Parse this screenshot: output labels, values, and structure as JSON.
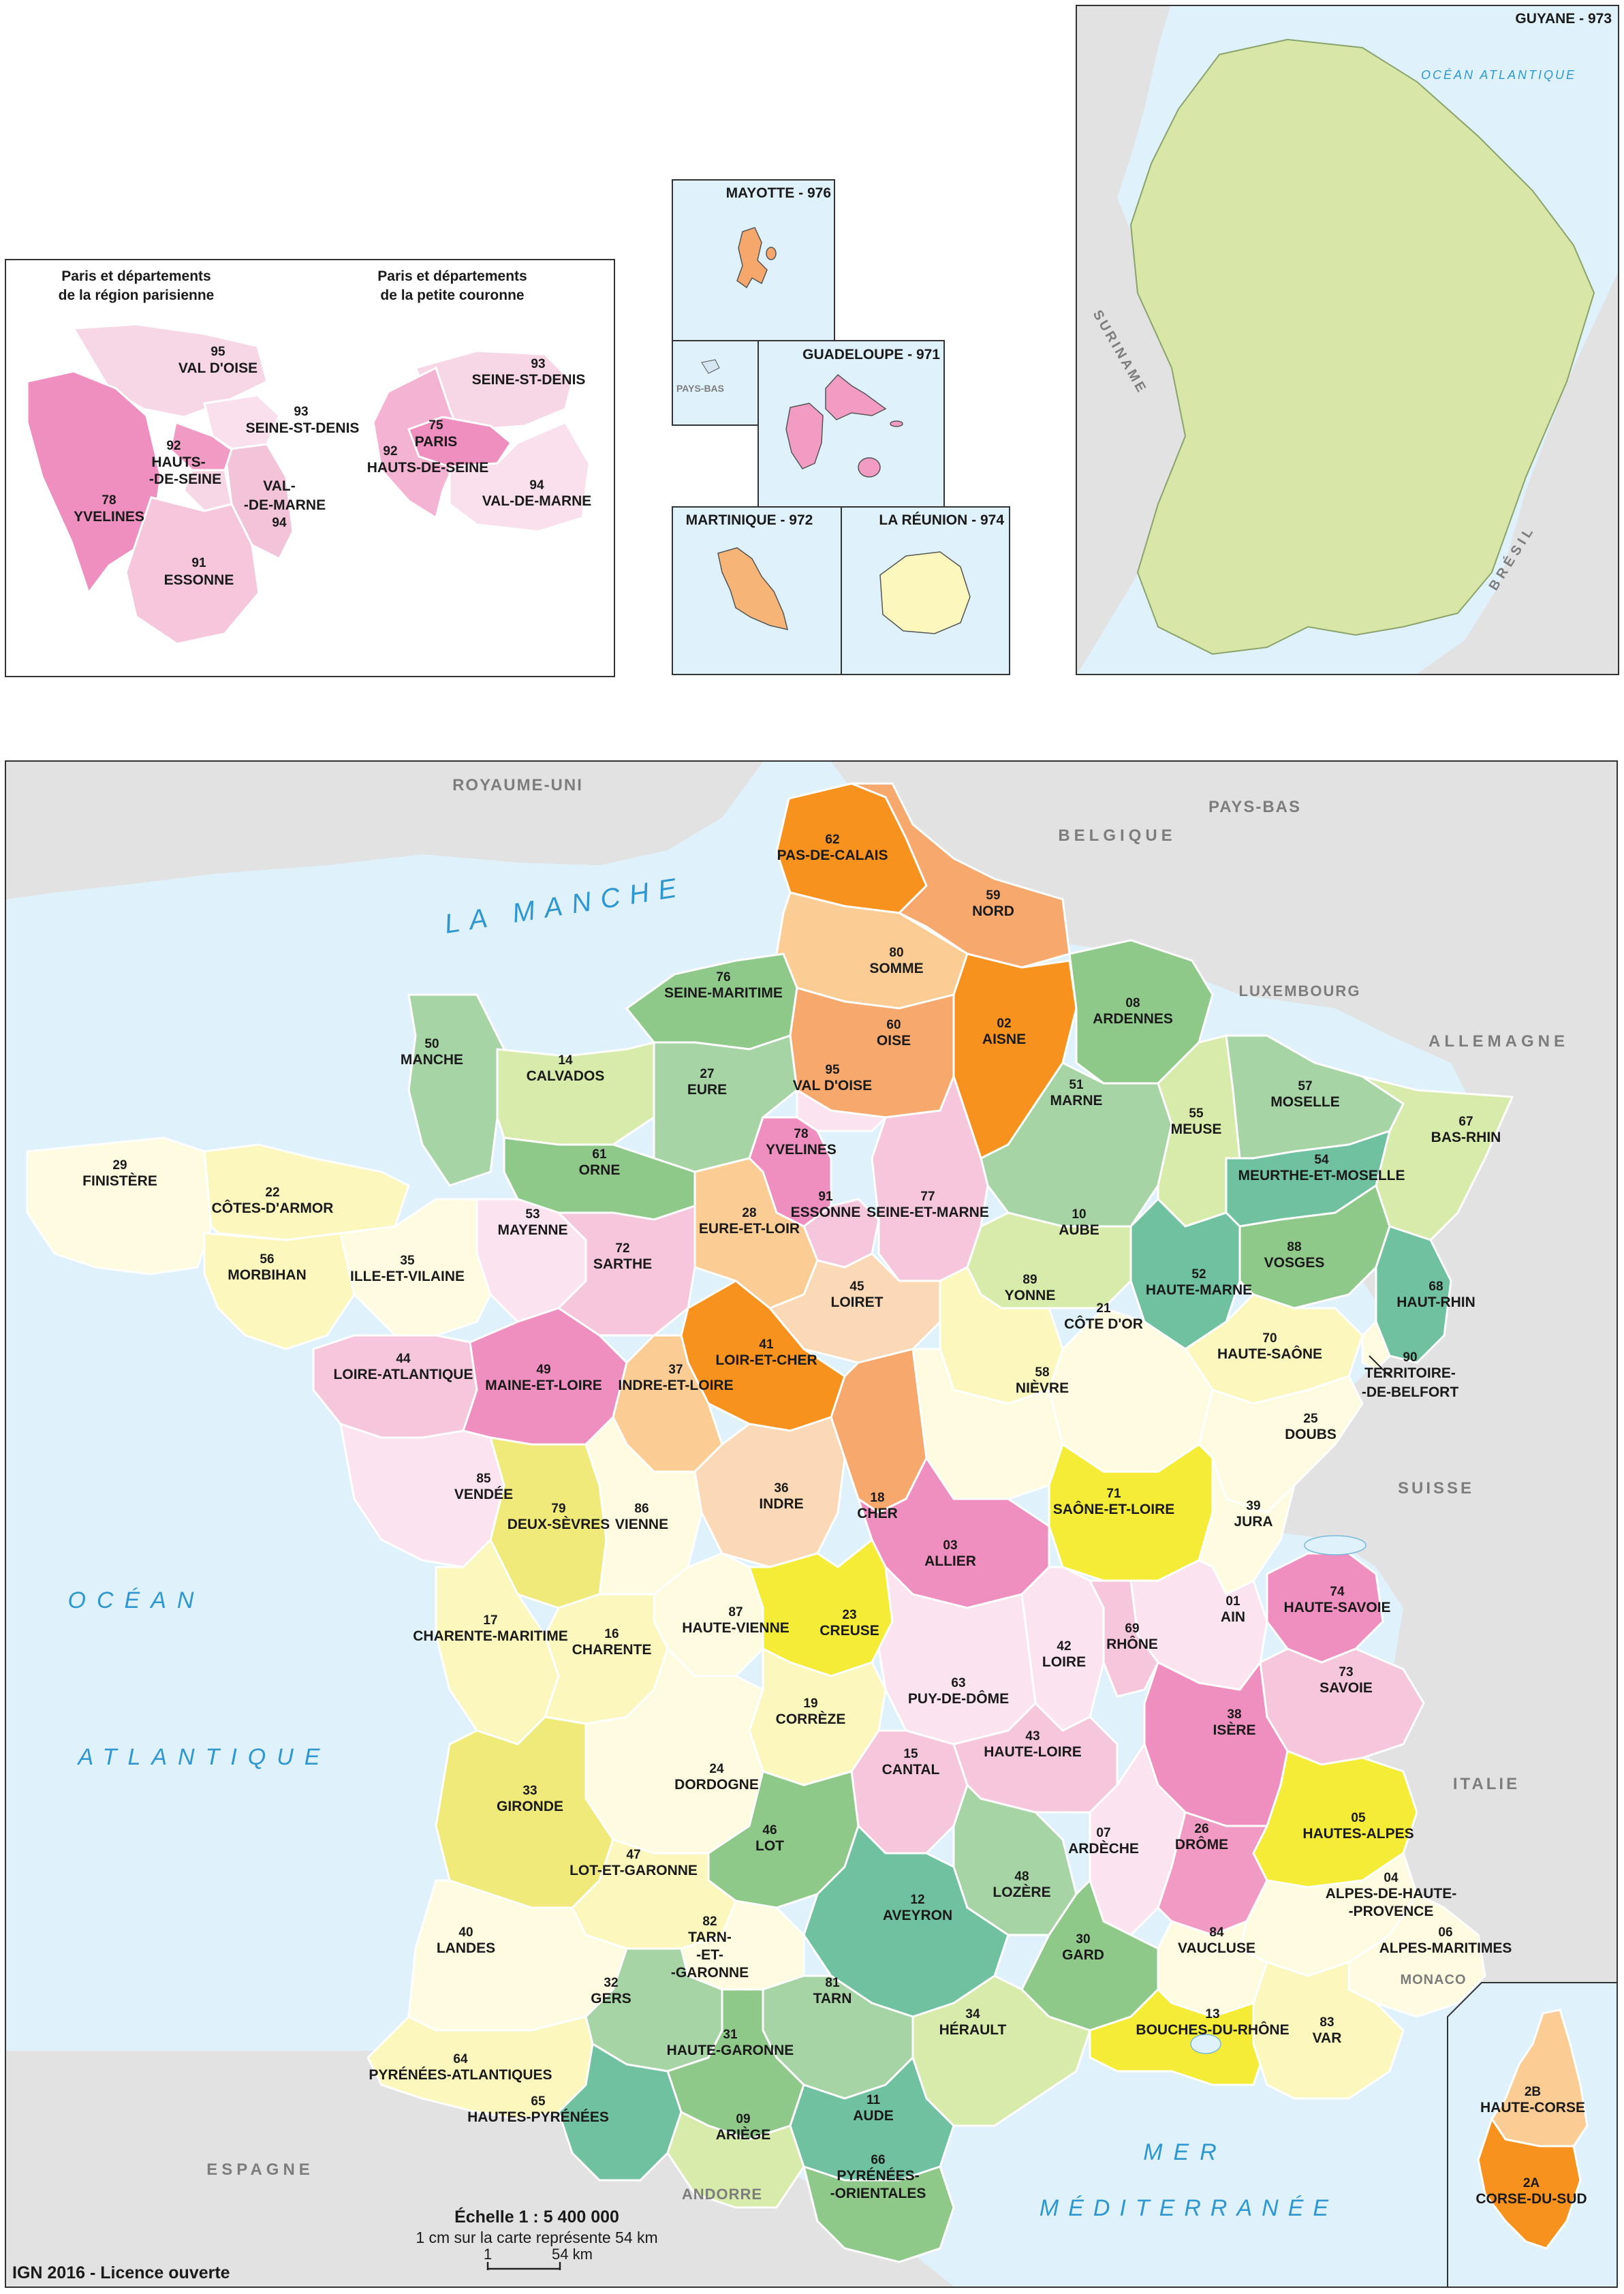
{
  "colors": {
    "sea": "#dff2fb",
    "land_gray": "#e2e2e2",
    "guyane": "#d8e6a8",
    "pink": "#f19bc4",
    "orange": "#f6a04a",
    "border": "#ffffff"
  },
  "insets": {
    "paris_region_title": [
      "Paris et départements",
      "de la région parisienne"
    ],
    "paris_petite_title": [
      "Paris et départements",
      "de la petite couronne"
    ],
    "mayotte": "MAYOTTE - 976",
    "guadeloupe": "GUADELOUPE - 971",
    "pays_bas": "PAYS-BAS",
    "martinique": "MARTINIQUE - 972",
    "reunion": "LA RÉUNION - 974",
    "guyane": "GUYANE - 973",
    "guyane_ocean": "OCÉAN ATLANTIQUE",
    "suriname": "SURINAME",
    "bresil": "BRÉSIL"
  },
  "paris_region_labels": [
    {
      "num": "95",
      "name": "VAL D'OISE"
    },
    {
      "num": "93",
      "name": "SEINE-ST-DENIS"
    },
    {
      "num": "92",
      "name": "HAUTS-"
    },
    {
      "num": "",
      "name": "-DE-SEINE"
    },
    {
      "num": "",
      "name": "VAL-"
    },
    {
      "num": "",
      "name": "-DE-MARNE"
    },
    {
      "num": "94",
      "name": ""
    },
    {
      "num": "78",
      "name": "YVELINES"
    },
    {
      "num": "91",
      "name": "ESSONNE"
    }
  ],
  "petite_labels": [
    {
      "num": "93",
      "name": "SEINE-ST-DENIS"
    },
    {
      "num": "75",
      "name": "PARIS"
    },
    {
      "num": "92",
      "name": "HAUTS-DE-SEINE"
    },
    {
      "num": "94",
      "name": "VAL-DE-MARNE"
    }
  ],
  "seas": {
    "manche": "LA MANCHE",
    "ocean": "OCÉAN",
    "atlantique": "ATLANTIQUE",
    "mer": "MER",
    "mediterranee": "MÉDITERRANÉE"
  },
  "countries": {
    "royaume_uni": "ROYAUME-UNI",
    "belgique": "BELGIQUE",
    "pays_bas": "PAYS-BAS",
    "luxembourg": "LUXEMBOURG",
    "allemagne": "ALLEMAGNE",
    "suisse": "SUISSE",
    "italie": "ITALIE",
    "monaco": "MONACO",
    "andorre": "ANDORRE",
    "espagne": "ESPAGNE"
  },
  "departments": [
    {
      "num": "62",
      "name": "PAS-DE-CALAIS"
    },
    {
      "num": "59",
      "name": "NORD"
    },
    {
      "num": "80",
      "name": "SOMME"
    },
    {
      "num": "02",
      "name": "AISNE"
    },
    {
      "num": "08",
      "name": "ARDENNES"
    },
    {
      "num": "76",
      "name": "SEINE-MARITIME"
    },
    {
      "num": "60",
      "name": "OISE"
    },
    {
      "num": "50",
      "name": "MANCHE"
    },
    {
      "num": "14",
      "name": "CALVADOS"
    },
    {
      "num": "27",
      "name": "EURE"
    },
    {
      "num": "95",
      "name": "VAL D'OISE"
    },
    {
      "num": "51",
      "name": "MARNE"
    },
    {
      "num": "55",
      "name": "MEUSE"
    },
    {
      "num": "57",
      "name": "MOSELLE"
    },
    {
      "num": "67",
      "name": "BAS-RHIN"
    },
    {
      "num": "29",
      "name": "FINISTÈRE"
    },
    {
      "num": "22",
      "name": "CÔTES-D'ARMOR"
    },
    {
      "num": "61",
      "name": "ORNE"
    },
    {
      "num": "78",
      "name": "YVELINES"
    },
    {
      "num": "91",
      "name": "ESSONNE"
    },
    {
      "num": "77",
      "name": "SEINE-ET-MARNE"
    },
    {
      "num": "54",
      "name": "MEURTHE-ET-MOSELLE"
    },
    {
      "num": "53",
      "name": "MAYENNE"
    },
    {
      "num": "28",
      "name": "EURE-ET-LOIR"
    },
    {
      "num": "10",
      "name": "AUBE"
    },
    {
      "num": "56",
      "name": "MORBIHAN"
    },
    {
      "num": "35",
      "name": "ILLE-ET-VILAINE"
    },
    {
      "num": "72",
      "name": "SARTHE"
    },
    {
      "num": "45",
      "name": "LOIRET"
    },
    {
      "num": "89",
      "name": "YONNE"
    },
    {
      "num": "52",
      "name": "HAUTE-MARNE"
    },
    {
      "num": "88",
      "name": "VOSGES"
    },
    {
      "num": "68",
      "name": "HAUT-RHIN"
    },
    {
      "num": "44",
      "name": "LOIRE-ATLANTIQUE"
    },
    {
      "num": "49",
      "name": "MAINE-ET-LOIRE"
    },
    {
      "num": "41",
      "name": "LOIR-ET-CHER"
    },
    {
      "num": "37",
      "name": "INDRE-ET-LOIRE"
    },
    {
      "num": "21",
      "name": "CÔTE D'OR"
    },
    {
      "num": "70",
      "name": "HAUTE-SAÔNE"
    },
    {
      "num": "90",
      "name": "TERRITOIRE-"
    },
    {
      "num": "",
      "name": "-DE-BELFORT"
    },
    {
      "num": "58",
      "name": "NIÈVRE"
    },
    {
      "num": "25",
      "name": "DOUBS"
    },
    {
      "num": "85",
      "name": "VENDÉE"
    },
    {
      "num": "79",
      "name": "DEUX-SÈVRES"
    },
    {
      "num": "86",
      "name": "VIENNE"
    },
    {
      "num": "36",
      "name": "INDRE"
    },
    {
      "num": "18",
      "name": "CHER"
    },
    {
      "num": "71",
      "name": "SAÔNE-ET-LOIRE"
    },
    {
      "num": "39",
      "name": "JURA"
    },
    {
      "num": "03",
      "name": "ALLIER"
    },
    {
      "num": "17",
      "name": "CHARENTE-MARITIME"
    },
    {
      "num": "87",
      "name": "HAUTE-VIENNE"
    },
    {
      "num": "23",
      "name": "CREUSE"
    },
    {
      "num": "74",
      "name": "HAUTE-SAVOIE"
    },
    {
      "num": "01",
      "name": "AIN"
    },
    {
      "num": "16",
      "name": "CHARENTE"
    },
    {
      "num": "42",
      "name": "LOIRE"
    },
    {
      "num": "69",
      "name": "RHÔNE"
    },
    {
      "num": "63",
      "name": "PUY-DE-DÔME"
    },
    {
      "num": "73",
      "name": "SAVOIE"
    },
    {
      "num": "19",
      "name": "CORRÈZE"
    },
    {
      "num": "38",
      "name": "ISÈRE"
    },
    {
      "num": "24",
      "name": "DORDOGNE"
    },
    {
      "num": "15",
      "name": "CANTAL"
    },
    {
      "num": "43",
      "name": "HAUTE-LOIRE"
    },
    {
      "num": "05",
      "name": "HAUTES-ALPES"
    },
    {
      "num": "33",
      "name": "GIRONDE"
    },
    {
      "num": "46",
      "name": "LOT"
    },
    {
      "num": "07",
      "name": "ARDÈCHE"
    },
    {
      "num": "26",
      "name": "DRÔME"
    },
    {
      "num": "47",
      "name": "LOT-ET-GARONNE"
    },
    {
      "num": "48",
      "name": "LOZÈRE"
    },
    {
      "num": "04",
      "name": "ALPES-DE-HAUTE-"
    },
    {
      "num": "",
      "name": "-PROVENCE"
    },
    {
      "num": "12",
      "name": "AVEYRON"
    },
    {
      "num": "82",
      "name": "TARN-"
    },
    {
      "num": "",
      "name": "-ET-"
    },
    {
      "num": "",
      "name": "-GARONNE"
    },
    {
      "num": "40",
      "name": "LANDES"
    },
    {
      "num": "30",
      "name": "GARD"
    },
    {
      "num": "84",
      "name": "VAUCLUSE"
    },
    {
      "num": "06",
      "name": "ALPES-MARITIMES"
    },
    {
      "num": "32",
      "name": "GERS"
    },
    {
      "num": "81",
      "name": "TARN"
    },
    {
      "num": "34",
      "name": "HÉRAULT"
    },
    {
      "num": "13",
      "name": "BOUCHES-DU-RHÔNE"
    },
    {
      "num": "83",
      "name": "VAR"
    },
    {
      "num": "31",
      "name": "HAUTE-GARONNE"
    },
    {
      "num": "64",
      "name": "PYRÉNÉES-ATLANTIQUES"
    },
    {
      "num": "65",
      "name": "HAUTES-PYRÉNÉES"
    },
    {
      "num": "09",
      "name": "ARIÈGE"
    },
    {
      "num": "11",
      "name": "AUDE"
    },
    {
      "num": "66",
      "name": "PYRÉNÉES-"
    },
    {
      "num": "",
      "name": "-ORIENTALES"
    },
    {
      "num": "2B",
      "name": "HAUTE-CORSE"
    },
    {
      "num": "2A",
      "name": "CORSE-DU-SUD"
    }
  ],
  "footer": {
    "echelle": "Échelle 1 : 5 400 000",
    "echelle_sub": "1 cm sur la carte représente 54 km",
    "scale_start": "1",
    "scale_end": "54 km",
    "credit": "IGN 2016 - Licence ouverte"
  }
}
